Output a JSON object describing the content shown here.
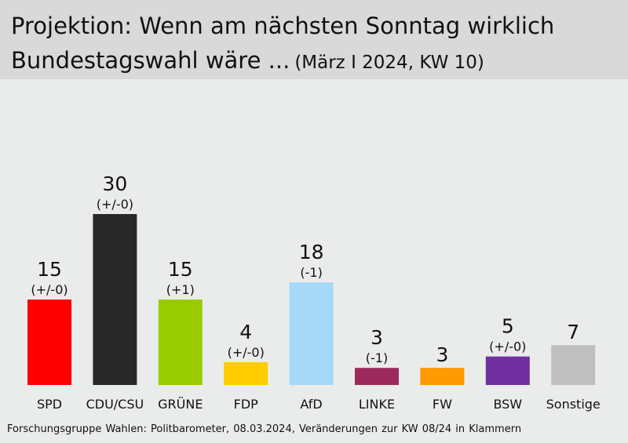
{
  "header": {
    "title_line1": "Projektion: Wenn am nächsten Sonntag wirklich",
    "title_line2": "Bundestagswahl wäre ...",
    "subtitle": "(März I 2024, KW 10)"
  },
  "footer": {
    "source": "Forschungsgruppe Wahlen: Politbarometer, 08.03.2024, Veränderungen zur KW 08/24 in Klammern"
  },
  "chart_data": {
    "type": "bar",
    "title": "Projektion: Wenn am nächsten Sonntag wirklich Bundestagswahl wäre ...",
    "subtitle": "(März I 2024, KW 10)",
    "categories": [
      "SPD",
      "CDU/CSU",
      "GRÜNE",
      "FDP",
      "AfD",
      "LINKE",
      "FW",
      "BSW",
      "Sonstige"
    ],
    "values": [
      15,
      30,
      15,
      4,
      18,
      3,
      3,
      5,
      7
    ],
    "changes": [
      "(+/-0)",
      "(+/-0)",
      "(+1)",
      "(+/-0)",
      "(-1)",
      "(-1)",
      "",
      "(+/-0)",
      ""
    ],
    "colors": [
      "#ff0000",
      "#282828",
      "#99cc00",
      "#ffcc00",
      "#a6d8f7",
      "#9c2a5c",
      "#ff9900",
      "#7030a0",
      "#bfbfbf"
    ],
    "xlabel": "",
    "ylabel": "",
    "ylim": [
      0,
      30
    ],
    "grid": false,
    "legend": "none"
  }
}
